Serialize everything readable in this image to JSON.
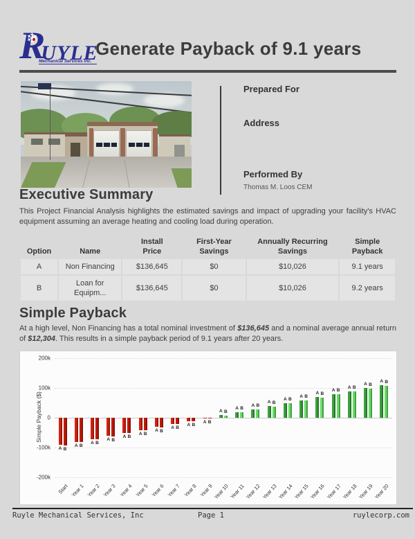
{
  "header": {
    "logo_r": "R",
    "logo_rest": "UYLE",
    "snowflake": "❄",
    "tagline": "Mechanical Services Inc.",
    "title": "Generate Payback of 9.1 years"
  },
  "prepared": {
    "prepared_for_label": "Prepared For",
    "address_label": "Address",
    "performed_by_label": "Performed By",
    "performed_by_value": "Thomas M. Loos CEM"
  },
  "executive_summary": {
    "heading": "Executive Summary",
    "body": "This Project Financial Analysis highlights the estimated savings and impact of upgrading your facility's HVAC equipment assuming an average heating and cooling load during operation."
  },
  "options_table": {
    "columns": [
      [
        "Option"
      ],
      [
        "Name"
      ],
      [
        "Install",
        "Price"
      ],
      [
        "First-Year",
        "Savings"
      ],
      [
        "Annually Recurring",
        "Savings"
      ],
      [
        "Simple Payback"
      ]
    ],
    "col_widths": [
      "10%",
      "17%",
      "16%",
      "17%",
      "25%",
      "15%"
    ],
    "rows": [
      [
        [
          "A"
        ],
        [
          "Non Financing"
        ],
        [
          "$136,645"
        ],
        [
          "$0"
        ],
        [
          "$10,026"
        ],
        [
          "9.1 years"
        ]
      ],
      [
        [
          "B"
        ],
        [
          "Loan for",
          "Equipm..."
        ],
        [
          "$136,645"
        ],
        [
          "$0"
        ],
        [
          "$10,026"
        ],
        [
          "9.2 years"
        ]
      ]
    ]
  },
  "simple_payback": {
    "heading": "Simple Payback",
    "segments": [
      {
        "text": "At a high level, Non Financing has a total nominal investment of ",
        "style": "normal"
      },
      {
        "text": "$136,645",
        "style": "bold-italic"
      },
      {
        "text": " and a nominal average annual return of ",
        "style": "normal"
      },
      {
        "text": "$12,304",
        "style": "bold-italic"
      },
      {
        "text": ". This results in a simple payback period of 9.1 years after 20 years.",
        "style": "normal"
      }
    ]
  },
  "chart_data": {
    "type": "bar",
    "title": "",
    "xlabel": "",
    "ylabel": "Simple Payback ($)",
    "grid": true,
    "legend_position": "none",
    "ylim": [
      -200000,
      200000
    ],
    "yticks": [
      200000,
      100000,
      0,
      -100000,
      -200000
    ],
    "ytick_labels": [
      "200k",
      "100k",
      "0",
      "-100k",
      "-200k"
    ],
    "categories": [
      "Start",
      "Year 1",
      "Year 2",
      "Year 3",
      "Year 4",
      "Year 5",
      "Year 6",
      "Year 7",
      "Year 8",
      "Year 9",
      "Year 10",
      "Year 11",
      "Year 12",
      "Year 13",
      "Year 14",
      "Year 15",
      "Year 16",
      "Year 17",
      "Year 18",
      "Year 19",
      "Year 20"
    ],
    "series": [
      {
        "name": "A",
        "values": [
          -91000,
          -81000,
          -71000,
          -61000,
          -51000,
          -41000,
          -31000,
          -21000,
          -11000,
          -1000,
          9000,
          19000,
          29000,
          39000,
          49000,
          59000,
          69000,
          79000,
          89000,
          99000,
          109000
        ]
      },
      {
        "name": "B",
        "values": [
          -92000,
          -82000,
          -72000,
          -62000,
          -52000,
          -42000,
          -32000,
          -22000,
          -12000,
          -2000,
          8000,
          18000,
          28000,
          38000,
          48000,
          58000,
          68000,
          78000,
          88000,
          98000,
          108000
        ]
      }
    ],
    "colors": {
      "negative_a": "#d6220f",
      "negative_b": "#c01a08",
      "positive_a": "#3aa33c",
      "positive_b": "#67dc64"
    }
  },
  "footer": {
    "left": "Ruyle Mechanical Services, Inc",
    "center": "Page 1",
    "right": "ruylecorp.com"
  }
}
